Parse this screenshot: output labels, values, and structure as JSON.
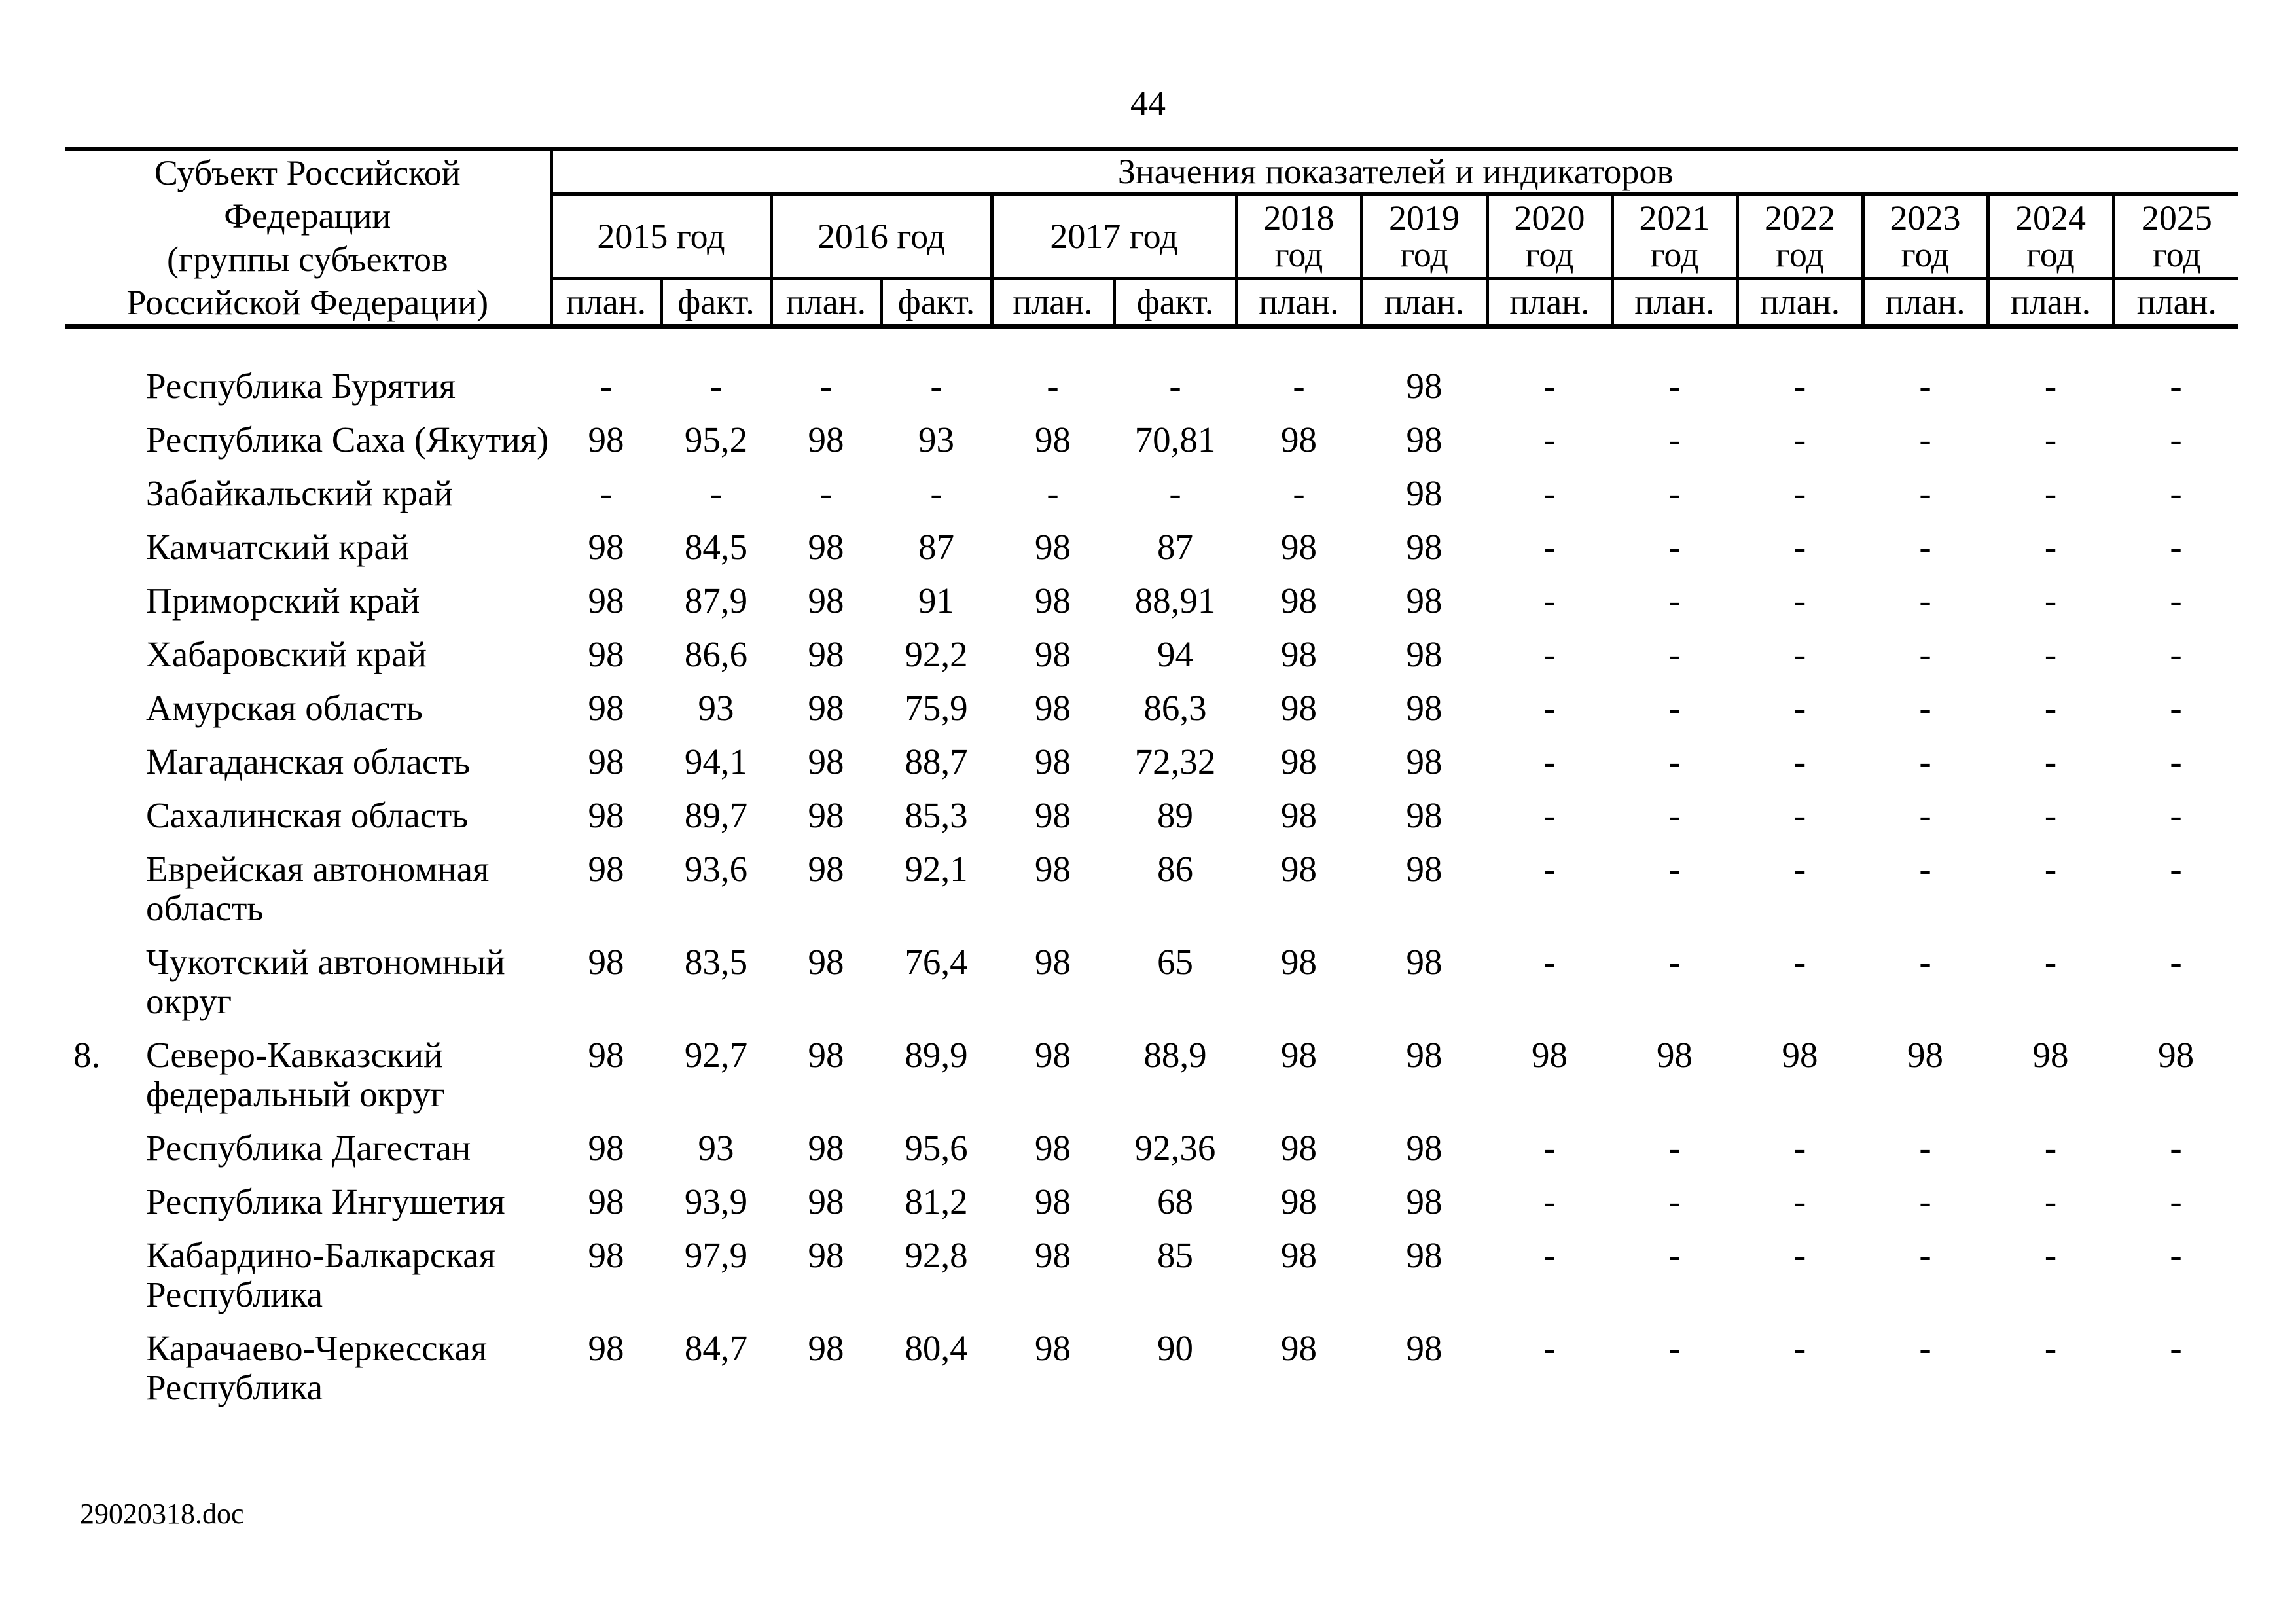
{
  "page": {
    "number": "44",
    "footer": "29020318.doc"
  },
  "table": {
    "subject_header_lines": [
      "Субъект Российской Федерации",
      "(группы субъектов",
      "Российской Федерации)"
    ],
    "values_header": "Значения показателей и индикаторов",
    "plan_label": "план.",
    "fact_label": "факт.",
    "year_groups_two_col": [
      "2015 год",
      "2016 год",
      "2017 год"
    ],
    "year_groups_one_col": [
      "2018 год",
      "2019 год",
      "2020 год",
      "2021 год",
      "2022 год",
      "2023 год",
      "2024 год",
      "2025 год"
    ],
    "columns": [
      "2015 план.",
      "2015 факт.",
      "2016 план.",
      "2016 факт.",
      "2017 план.",
      "2017 факт.",
      "2018 план.",
      "2019 план.",
      "2020 план.",
      "2021 план.",
      "2022 план.",
      "2023 план.",
      "2024 план.",
      "2025 план."
    ],
    "rows": [
      {
        "num": "",
        "name": "Республика Бурятия",
        "values": [
          "-",
          "-",
          "-",
          "-",
          "-",
          "-",
          "-",
          "98",
          "-",
          "-",
          "-",
          "-",
          "-",
          "-"
        ]
      },
      {
        "num": "",
        "name": "Республика Саха (Якутия)",
        "values": [
          "98",
          "95,2",
          "98",
          "93",
          "98",
          "70,81",
          "98",
          "98",
          "-",
          "-",
          "-",
          "-",
          "-",
          "-"
        ]
      },
      {
        "num": "",
        "name": "Забайкальский край",
        "values": [
          "-",
          "-",
          "-",
          "-",
          "-",
          "-",
          "-",
          "98",
          "-",
          "-",
          "-",
          "-",
          "-",
          "-"
        ]
      },
      {
        "num": "",
        "name": "Камчатский край",
        "values": [
          "98",
          "84,5",
          "98",
          "87",
          "98",
          "87",
          "98",
          "98",
          "-",
          "-",
          "-",
          "-",
          "-",
          "-"
        ]
      },
      {
        "num": "",
        "name": "Приморский край",
        "values": [
          "98",
          "87,9",
          "98",
          "91",
          "98",
          "88,91",
          "98",
          "98",
          "-",
          "-",
          "-",
          "-",
          "-",
          "-"
        ]
      },
      {
        "num": "",
        "name": "Хабаровский край",
        "values": [
          "98",
          "86,6",
          "98",
          "92,2",
          "98",
          "94",
          "98",
          "98",
          "-",
          "-",
          "-",
          "-",
          "-",
          "-"
        ]
      },
      {
        "num": "",
        "name": "Амурская область",
        "values": [
          "98",
          "93",
          "98",
          "75,9",
          "98",
          "86,3",
          "98",
          "98",
          "-",
          "-",
          "-",
          "-",
          "-",
          "-"
        ]
      },
      {
        "num": "",
        "name": "Магаданская область",
        "values": [
          "98",
          "94,1",
          "98",
          "88,7",
          "98",
          "72,32",
          "98",
          "98",
          "-",
          "-",
          "-",
          "-",
          "-",
          "-"
        ]
      },
      {
        "num": "",
        "name": "Сахалинская область",
        "values": [
          "98",
          "89,7",
          "98",
          "85,3",
          "98",
          "89",
          "98",
          "98",
          "-",
          "-",
          "-",
          "-",
          "-",
          "-"
        ]
      },
      {
        "num": "",
        "name": "Еврейская автономная область",
        "values": [
          "98",
          "93,6",
          "98",
          "92,1",
          "98",
          "86",
          "98",
          "98",
          "-",
          "-",
          "-",
          "-",
          "-",
          "-"
        ]
      },
      {
        "num": "",
        "name": "Чукотский автономный округ",
        "values": [
          "98",
          "83,5",
          "98",
          "76,4",
          "98",
          "65",
          "98",
          "98",
          "-",
          "-",
          "-",
          "-",
          "-",
          "-"
        ]
      },
      {
        "num": "8.",
        "name": "Северо-Кавказский федеральный округ",
        "values": [
          "98",
          "92,7",
          "98",
          "89,9",
          "98",
          "88,9",
          "98",
          "98",
          "98",
          "98",
          "98",
          "98",
          "98",
          "98"
        ]
      },
      {
        "num": "",
        "name": "Республика Дагестан",
        "values": [
          "98",
          "93",
          "98",
          "95,6",
          "98",
          "92,36",
          "98",
          "98",
          "-",
          "-",
          "-",
          "-",
          "-",
          "-"
        ]
      },
      {
        "num": "",
        "name": "Республика Ингушетия",
        "values": [
          "98",
          "93,9",
          "98",
          "81,2",
          "98",
          "68",
          "98",
          "98",
          "-",
          "-",
          "-",
          "-",
          "-",
          "-"
        ]
      },
      {
        "num": "",
        "name": "Кабардино-Балкарская Республика",
        "values": [
          "98",
          "97,9",
          "98",
          "92,8",
          "98",
          "85",
          "98",
          "98",
          "-",
          "-",
          "-",
          "-",
          "-",
          "-"
        ]
      },
      {
        "num": "",
        "name": "Карачаево-Черкесская Республика",
        "values": [
          "98",
          "84,7",
          "98",
          "80,4",
          "98",
          "90",
          "98",
          "98",
          "-",
          "-",
          "-",
          "-",
          "-",
          "-"
        ]
      }
    ]
  }
}
